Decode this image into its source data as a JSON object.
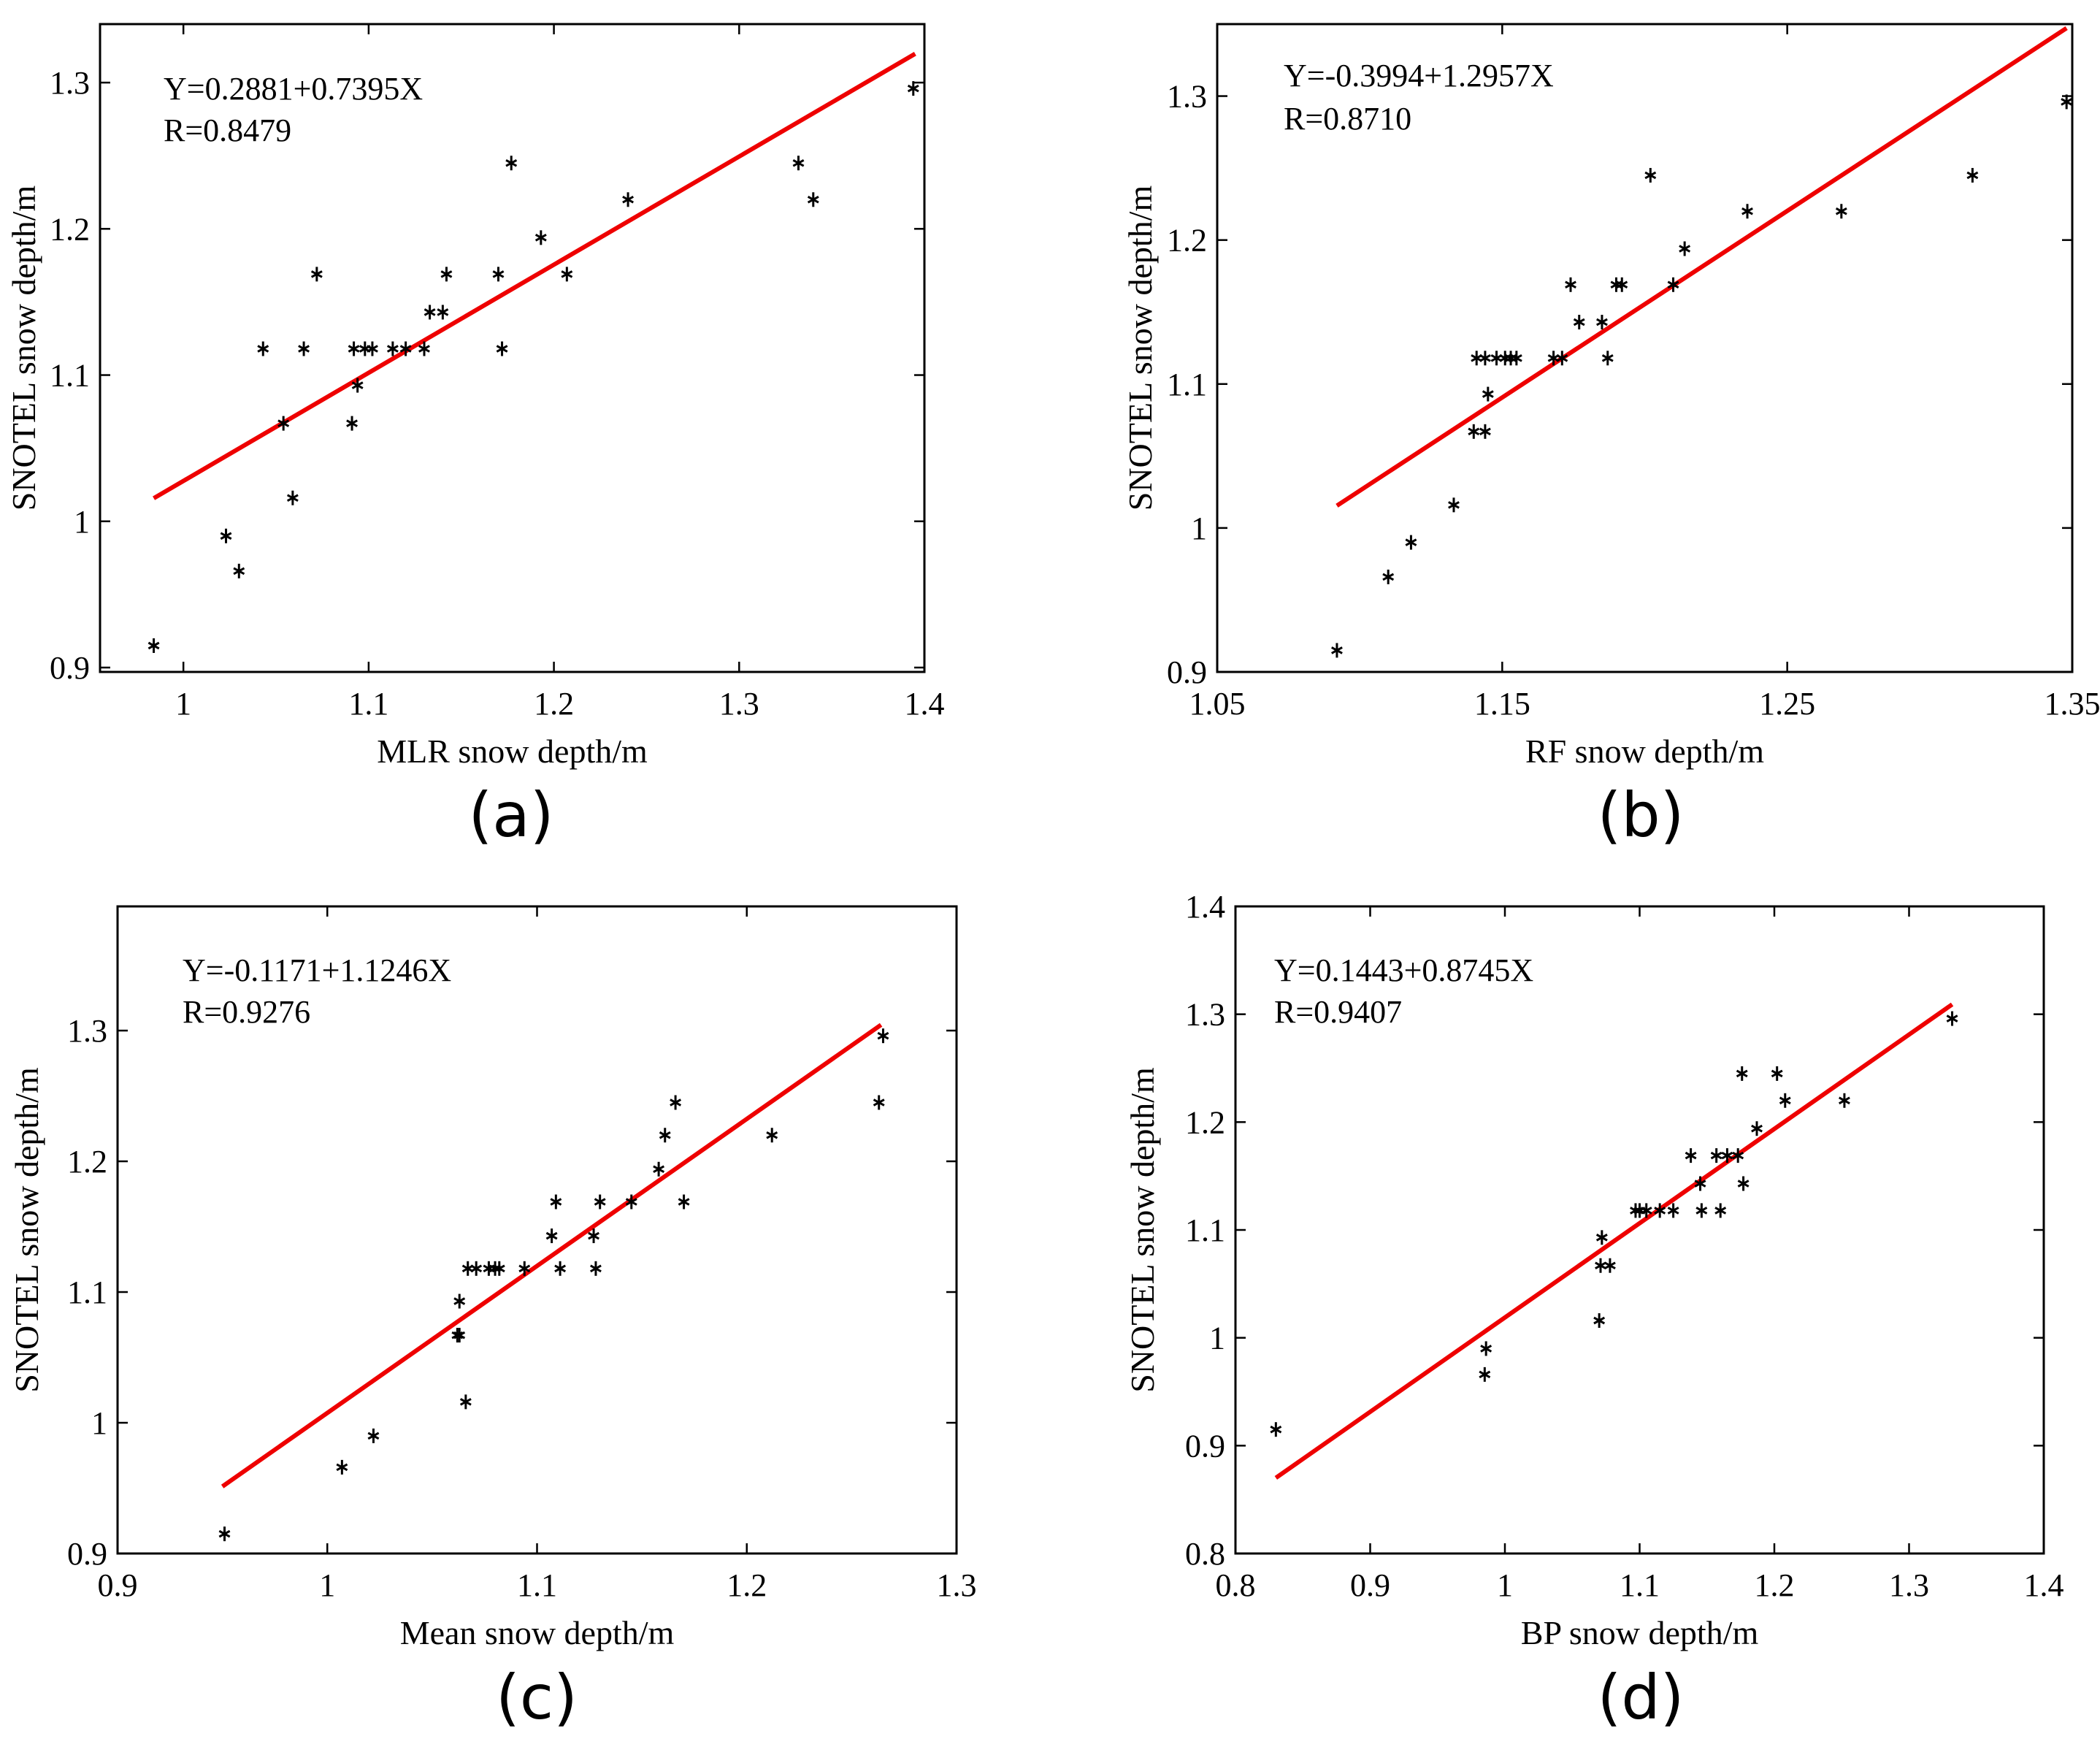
{
  "fit_color": "#ee0000",
  "marker_color": "#000000",
  "chart_data": [
    {
      "type": "scatter",
      "panel_label": "(a)",
      "xlabel": "MLR snow depth/m",
      "ylabel": "SNOTEL snow depth/m",
      "equation": "Y=0.2881+0.7395X",
      "r_text": "R=0.8479",
      "xlim": [
        0.955,
        1.4
      ],
      "ylim": [
        0.897,
        1.34
      ],
      "xticks": [
        1,
        1.1,
        1.2,
        1.3,
        1.4
      ],
      "xtick_labels": [
        "1",
        "1.1",
        "1.2",
        "1.3",
        "1.4"
      ],
      "yticks": [
        0.9,
        1,
        1.1,
        1.2,
        1.3
      ],
      "ytick_labels": [
        "0.9",
        "1",
        "1.1",
        "1.2",
        "1.3"
      ],
      "fit_line": {
        "intercept": 0.2881,
        "slope": 0.7395,
        "x_start": 0.984,
        "x_end": 1.395
      },
      "points": [
        [
          0.984,
          0.915
        ],
        [
          1.023,
          0.99
        ],
        [
          1.03,
          0.966
        ],
        [
          1.043,
          1.118
        ],
        [
          1.054,
          1.067
        ],
        [
          1.059,
          1.016
        ],
        [
          1.065,
          1.118
        ],
        [
          1.072,
          1.169
        ],
        [
          1.091,
          1.067
        ],
        [
          1.092,
          1.118
        ],
        [
          1.094,
          1.093
        ],
        [
          1.098,
          1.118
        ],
        [
          1.102,
          1.118
        ],
        [
          1.113,
          1.118
        ],
        [
          1.12,
          1.118
        ],
        [
          1.13,
          1.118
        ],
        [
          1.133,
          1.143
        ],
        [
          1.14,
          1.143
        ],
        [
          1.142,
          1.169
        ],
        [
          1.17,
          1.169
        ],
        [
          1.172,
          1.118
        ],
        [
          1.177,
          1.245
        ],
        [
          1.193,
          1.194
        ],
        [
          1.207,
          1.169
        ],
        [
          1.24,
          1.22
        ],
        [
          1.332,
          1.245
        ],
        [
          1.34,
          1.22
        ],
        [
          1.394,
          1.296
        ]
      ]
    },
    {
      "type": "scatter",
      "panel_label": "(b)",
      "xlabel": "RF snow depth/m",
      "ylabel": "SNOTEL snow depth/m",
      "equation": "Y=-0.3994+1.2957X",
      "r_text": "R=0.8710",
      "xlim": [
        1.05,
        1.35
      ],
      "ylim": [
        0.9,
        1.35
      ],
      "xticks": [
        1.05,
        1.15,
        1.25,
        1.35
      ],
      "xtick_labels": [
        "1.05",
        "1.15",
        "1.25",
        "1.35"
      ],
      "yticks": [
        0.9,
        1,
        1.1,
        1.2,
        1.3
      ],
      "ytick_labels": [
        "0.9",
        "1",
        "1.1",
        "1.2",
        "1.3"
      ],
      "fit_line": {
        "intercept": -0.3994,
        "slope": 1.2957,
        "x_start": 1.092,
        "x_end": 1.348
      },
      "points": [
        [
          1.092,
          0.915
        ],
        [
          1.11,
          0.966
        ],
        [
          1.118,
          0.99
        ],
        [
          1.133,
          1.016
        ],
        [
          1.14,
          1.067
        ],
        [
          1.144,
          1.067
        ],
        [
          1.141,
          1.118
        ],
        [
          1.144,
          1.118
        ],
        [
          1.145,
          1.093
        ],
        [
          1.148,
          1.118
        ],
        [
          1.151,
          1.118
        ],
        [
          1.153,
          1.118
        ],
        [
          1.155,
          1.118
        ],
        [
          1.168,
          1.118
        ],
        [
          1.171,
          1.118
        ],
        [
          1.174,
          1.169
        ],
        [
          1.177,
          1.143
        ],
        [
          1.185,
          1.143
        ],
        [
          1.187,
          1.118
        ],
        [
          1.19,
          1.169
        ],
        [
          1.192,
          1.169
        ],
        [
          1.202,
          1.245
        ],
        [
          1.21,
          1.169
        ],
        [
          1.214,
          1.194
        ],
        [
          1.236,
          1.22
        ],
        [
          1.269,
          1.22
        ],
        [
          1.315,
          1.245
        ],
        [
          1.348,
          1.296
        ]
      ]
    },
    {
      "type": "scatter",
      "panel_label": "(c)",
      "xlabel": "Mean snow depth/m",
      "ylabel": "SNOTEL snow depth/m",
      "equation": "Y=-0.1171+1.1246X",
      "r_text": "R=0.9276",
      "xlim": [
        0.9,
        1.3
      ],
      "ylim": [
        0.9,
        1.395
      ],
      "xticks": [
        0.9,
        1,
        1.1,
        1.2,
        1.3
      ],
      "xtick_labels": [
        "0.9",
        "1",
        "1.1",
        "1.2",
        "1.3"
      ],
      "yticks": [
        0.9,
        1,
        1.1,
        1.2,
        1.3
      ],
      "ytick_labels": [
        "0.9",
        "1",
        "1.1",
        "1.2",
        "1.3"
      ],
      "fit_line": {
        "intercept": -0.1171,
        "slope": 1.1246,
        "x_start": 0.95,
        "x_end": 1.264
      },
      "points": [
        [
          0.951,
          0.915
        ],
        [
          1.007,
          0.966
        ],
        [
          1.022,
          0.99
        ],
        [
          1.062,
          1.067
        ],
        [
          1.063,
          1.067
        ],
        [
          1.063,
          1.093
        ],
        [
          1.066,
          1.016
        ],
        [
          1.067,
          1.118
        ],
        [
          1.071,
          1.118
        ],
        [
          1.077,
          1.118
        ],
        [
          1.08,
          1.118
        ],
        [
          1.082,
          1.118
        ],
        [
          1.094,
          1.118
        ],
        [
          1.107,
          1.143
        ],
        [
          1.109,
          1.169
        ],
        [
          1.111,
          1.118
        ],
        [
          1.127,
          1.143
        ],
        [
          1.128,
          1.118
        ],
        [
          1.13,
          1.169
        ],
        [
          1.145,
          1.169
        ],
        [
          1.158,
          1.194
        ],
        [
          1.161,
          1.22
        ],
        [
          1.166,
          1.245
        ],
        [
          1.17,
          1.169
        ],
        [
          1.212,
          1.22
        ],
        [
          1.263,
          1.245
        ],
        [
          1.265,
          1.296
        ]
      ]
    },
    {
      "type": "scatter",
      "panel_label": "(d)",
      "xlabel": "BP snow depth/m",
      "ylabel": "SNOTEL snow depth/m",
      "equation": "Y=0.1443+0.8745X",
      "r_text": "R=0.9407",
      "xlim": [
        0.8,
        1.4
      ],
      "ylim": [
        0.8,
        1.4
      ],
      "xticks": [
        0.8,
        0.9,
        1,
        1.1,
        1.2,
        1.3,
        1.4
      ],
      "xtick_labels": [
        "0.8",
        "0.9",
        "1",
        "1.1",
        "1.2",
        "1.3",
        "1.4"
      ],
      "yticks": [
        0.8,
        0.9,
        1,
        1.1,
        1.2,
        1.3,
        1.4
      ],
      "ytick_labels": [
        "0.8",
        "0.9",
        "1",
        "1.1",
        "1.2",
        "1.3",
        "1.4"
      ],
      "fit_line": {
        "intercept": 0.1443,
        "slope": 0.8745,
        "x_start": 0.83,
        "x_end": 1.332
      },
      "points": [
        [
          0.83,
          0.915
        ],
        [
          0.985,
          0.966
        ],
        [
          0.986,
          0.99
        ],
        [
          1.07,
          1.016
        ],
        [
          1.071,
          1.067
        ],
        [
          1.072,
          1.093
        ],
        [
          1.078,
          1.067
        ],
        [
          1.097,
          1.118
        ],
        [
          1.1,
          1.118
        ],
        [
          1.105,
          1.118
        ],
        [
          1.115,
          1.118
        ],
        [
          1.125,
          1.118
        ],
        [
          1.138,
          1.169
        ],
        [
          1.145,
          1.143
        ],
        [
          1.146,
          1.118
        ],
        [
          1.157,
          1.169
        ],
        [
          1.16,
          1.118
        ],
        [
          1.165,
          1.169
        ],
        [
          1.173,
          1.169
        ],
        [
          1.176,
          1.245
        ],
        [
          1.177,
          1.143
        ],
        [
          1.187,
          1.194
        ],
        [
          1.202,
          1.245
        ],
        [
          1.208,
          1.22
        ],
        [
          1.252,
          1.22
        ],
        [
          1.332,
          1.296
        ]
      ]
    }
  ]
}
